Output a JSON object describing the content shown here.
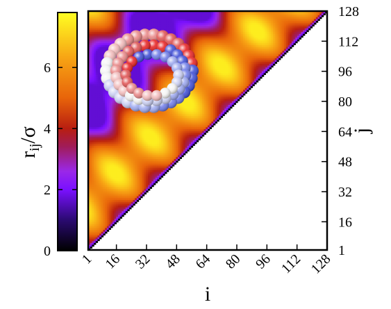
{
  "chart_data": {
    "type": "heatmap",
    "description_type": "upper-triangle distance map (j > i) with colorbar",
    "x": {
      "label": "i",
      "range": [
        1,
        128
      ],
      "ticks": [
        "1",
        "16",
        "32",
        "48",
        "64",
        "80",
        "96",
        "112",
        "128"
      ],
      "tick_values": [
        1,
        16,
        32,
        48,
        64,
        80,
        96,
        112,
        128
      ],
      "tick_label_rotation_deg": -45
    },
    "y": {
      "label": "j",
      "side": "right",
      "range": [
        1,
        128
      ],
      "ticks": [
        "1",
        "16",
        "32",
        "48",
        "64",
        "80",
        "96",
        "112",
        "128"
      ],
      "tick_values": [
        1,
        16,
        32,
        48,
        64,
        80,
        96,
        112,
        128
      ]
    },
    "colorbar": {
      "label_base": "r",
      "label_sub": "ij",
      "label_tail": "/σ",
      "range": [
        0,
        7.8
      ],
      "ticks": [
        "0",
        "2",
        "4",
        "6"
      ],
      "tick_values": [
        0,
        2,
        4,
        6
      ],
      "stops": [
        {
          "value": 0.0,
          "color": "#000000"
        },
        {
          "value": 1.0,
          "color": "#2a0a70"
        },
        {
          "value": 2.0,
          "color": "#7a10ff"
        },
        {
          "value": 2.6,
          "color": "#9a28e8"
        },
        {
          "value": 3.4,
          "color": "#a01c5a"
        },
        {
          "value": 4.0,
          "color": "#b81e10"
        },
        {
          "value": 5.0,
          "color": "#e8640a"
        },
        {
          "value": 6.3,
          "color": "#f7a314"
        },
        {
          "value": 7.8,
          "color": "#ffff22"
        }
      ]
    },
    "map_model": {
      "n": 128,
      "diagonal_value": 0,
      "background_lower_triangle": "#ffffff",
      "baseline": 3.7,
      "diff_term_amp": 3.0,
      "diff_term_period": 54,
      "sum_term_amp": 1.0,
      "sum_term_period": 38,
      "min_value": 1.7,
      "max_value": 7.5
    },
    "inset": "helical ring of beads (colored from blue through white to red)"
  },
  "colors": {
    "frame": "#000000",
    "background": "#ffffff"
  }
}
